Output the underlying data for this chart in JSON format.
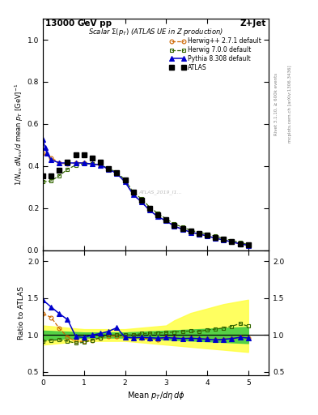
{
  "title_left": "13000 GeV pp",
  "title_right": "Z+Jet",
  "plot_title": "Scalar Σ(p_T) (ATLAS UE in Z production)",
  "ylabel_main": "1/N_{ev} dN_{ev}/d mean p_T  [GeV]^{-1}",
  "ylabel_ratio": "Ratio to ATLAS",
  "xlabel": "Mean p_T/dη dφ",
  "rivet_label": "Rivet 3.1.10, ≥ 600k events",
  "mcplots_label": "mcplots.cern.ch [arXiv:1306.3436]",
  "watermark": "ATLAS_2019_I1...",
  "atlas_x": [
    0.0,
    0.2,
    0.4,
    0.6,
    0.8,
    1.0,
    1.2,
    1.4,
    1.6,
    1.8,
    2.0,
    2.2,
    2.4,
    2.6,
    2.8,
    3.0,
    3.2,
    3.4,
    3.6,
    3.8,
    4.0,
    4.2,
    4.4,
    4.6,
    4.8,
    5.0
  ],
  "atlas_y": [
    0.355,
    0.355,
    0.38,
    0.42,
    0.455,
    0.455,
    0.44,
    0.42,
    0.39,
    0.37,
    0.335,
    0.275,
    0.24,
    0.2,
    0.17,
    0.145,
    0.12,
    0.105,
    0.09,
    0.082,
    0.072,
    0.062,
    0.052,
    0.042,
    0.032,
    0.025
  ],
  "herwig1_x": [
    0.0,
    0.2,
    0.4,
    0.6,
    0.8,
    1.0,
    1.2,
    1.4,
    1.6,
    1.8,
    2.0,
    2.2,
    2.4,
    2.6,
    2.8,
    3.0,
    3.2,
    3.4,
    3.6,
    3.8,
    4.0,
    4.2,
    4.4,
    4.6,
    4.8,
    5.0
  ],
  "herwig1_y": [
    0.46,
    0.44,
    0.415,
    0.41,
    0.415,
    0.415,
    0.41,
    0.405,
    0.385,
    0.365,
    0.325,
    0.265,
    0.23,
    0.19,
    0.16,
    0.14,
    0.115,
    0.1,
    0.086,
    0.078,
    0.068,
    0.058,
    0.049,
    0.04,
    0.031,
    0.024
  ],
  "herwig2_x": [
    0.0,
    0.2,
    0.4,
    0.6,
    0.8,
    1.0,
    1.2,
    1.4,
    1.6,
    1.8,
    2.0,
    2.2,
    2.4,
    2.6,
    2.8,
    3.0,
    3.2,
    3.4,
    3.6,
    3.8,
    4.0,
    4.2,
    4.4,
    4.6,
    4.8,
    5.0
  ],
  "herwig2_y": [
    0.325,
    0.33,
    0.355,
    0.385,
    0.405,
    0.41,
    0.41,
    0.405,
    0.39,
    0.37,
    0.335,
    0.275,
    0.245,
    0.205,
    0.175,
    0.15,
    0.125,
    0.11,
    0.095,
    0.086,
    0.077,
    0.067,
    0.057,
    0.047,
    0.037,
    0.028
  ],
  "pythia_x": [
    0.0,
    0.05,
    0.1,
    0.2,
    0.4,
    0.6,
    0.8,
    1.0,
    1.2,
    1.4,
    1.6,
    1.8,
    2.0,
    2.2,
    2.4,
    2.6,
    2.8,
    3.0,
    3.2,
    3.4,
    3.6,
    3.8,
    4.0,
    4.2,
    4.4,
    4.6,
    4.8,
    5.0
  ],
  "pythia_y": [
    0.525,
    0.49,
    0.46,
    0.43,
    0.415,
    0.415,
    0.415,
    0.415,
    0.41,
    0.405,
    0.385,
    0.365,
    0.325,
    0.265,
    0.23,
    0.19,
    0.16,
    0.14,
    0.115,
    0.1,
    0.086,
    0.078,
    0.068,
    0.058,
    0.049,
    0.04,
    0.031,
    0.024
  ],
  "band_x": [
    0.0,
    0.2,
    0.4,
    0.6,
    0.8,
    1.0,
    1.2,
    1.4,
    1.6,
    1.8,
    2.0,
    2.2,
    2.4,
    2.6,
    2.8,
    3.0,
    3.2,
    3.4,
    3.6,
    3.8,
    4.0,
    4.2,
    4.4,
    4.6,
    4.8,
    5.0
  ],
  "band_yellow_lo": [
    0.87,
    0.88,
    0.89,
    0.9,
    0.91,
    0.92,
    0.92,
    0.92,
    0.92,
    0.92,
    0.92,
    0.91,
    0.9,
    0.89,
    0.88,
    0.87,
    0.86,
    0.85,
    0.84,
    0.83,
    0.82,
    0.81,
    0.8,
    0.79,
    0.78,
    0.77
  ],
  "band_yellow_hi": [
    1.13,
    1.12,
    1.11,
    1.1,
    1.09,
    1.08,
    1.08,
    1.08,
    1.08,
    1.08,
    1.08,
    1.09,
    1.1,
    1.11,
    1.12,
    1.13,
    1.2,
    1.25,
    1.3,
    1.33,
    1.36,
    1.39,
    1.42,
    1.44,
    1.46,
    1.48
  ],
  "band_green_lo": [
    0.94,
    0.945,
    0.95,
    0.955,
    0.96,
    0.965,
    0.965,
    0.965,
    0.965,
    0.965,
    0.965,
    0.96,
    0.955,
    0.95,
    0.945,
    0.94,
    0.935,
    0.93,
    0.925,
    0.92,
    0.915,
    0.91,
    0.905,
    0.9,
    0.895,
    0.89
  ],
  "band_green_hi": [
    1.06,
    1.055,
    1.05,
    1.045,
    1.04,
    1.035,
    1.035,
    1.035,
    1.035,
    1.035,
    1.035,
    1.04,
    1.045,
    1.05,
    1.055,
    1.06,
    1.065,
    1.07,
    1.075,
    1.08,
    1.085,
    1.09,
    1.095,
    1.1,
    1.105,
    1.11
  ],
  "ratio_x": [
    0.0,
    0.2,
    0.4,
    0.6,
    0.8,
    1.0,
    1.2,
    1.4,
    1.6,
    1.8,
    2.0,
    2.2,
    2.4,
    2.6,
    2.8,
    3.0,
    3.2,
    3.4,
    3.6,
    3.8,
    4.0,
    4.2,
    4.4,
    4.6,
    4.8,
    5.0
  ],
  "ratio_herwig1": [
    1.29,
    1.24,
    1.09,
    0.976,
    0.912,
    0.913,
    0.932,
    0.964,
    0.987,
    0.987,
    0.97,
    0.964,
    0.958,
    0.95,
    0.941,
    0.966,
    0.958,
    0.952,
    0.956,
    0.951,
    0.944,
    0.935,
    0.942,
    0.952,
    0.969,
    0.96
  ],
  "ratio_herwig2": [
    0.915,
    0.929,
    0.934,
    0.917,
    0.89,
    0.901,
    0.932,
    0.964,
    1.0,
    1.0,
    1.0,
    1.0,
    1.021,
    1.025,
    1.029,
    1.034,
    1.042,
    1.048,
    1.056,
    1.049,
    1.069,
    1.081,
    1.096,
    1.119,
    1.156,
    1.12
  ],
  "ratio_pythia": [
    1.477,
    1.38,
    1.29,
    1.21,
    0.98,
    0.967,
    1.0,
    1.022,
    1.051,
    1.1,
    0.97,
    0.964,
    0.97,
    0.964,
    0.958,
    0.966,
    0.958,
    0.952,
    0.956,
    0.951,
    0.944,
    0.935,
    0.942,
    0.952,
    0.969,
    0.96
  ],
  "color_atlas": "#000000",
  "color_herwig1": "#cc6600",
  "color_herwig2": "#336600",
  "color_pythia": "#0000cc",
  "color_band_yellow": "#ffff44",
  "color_band_green": "#44cc44",
  "xlim": [
    0.0,
    5.5
  ],
  "ylim_main": [
    0.0,
    1.1
  ],
  "ylim_ratio": [
    0.45,
    2.15
  ],
  "yticks_main": [
    0.0,
    0.2,
    0.4,
    0.6,
    0.8,
    1.0
  ],
  "yticks_ratio": [
    0.5,
    1.0,
    1.5,
    2.0
  ],
  "xticks": [
    0,
    1,
    2,
    3,
    4,
    5
  ]
}
